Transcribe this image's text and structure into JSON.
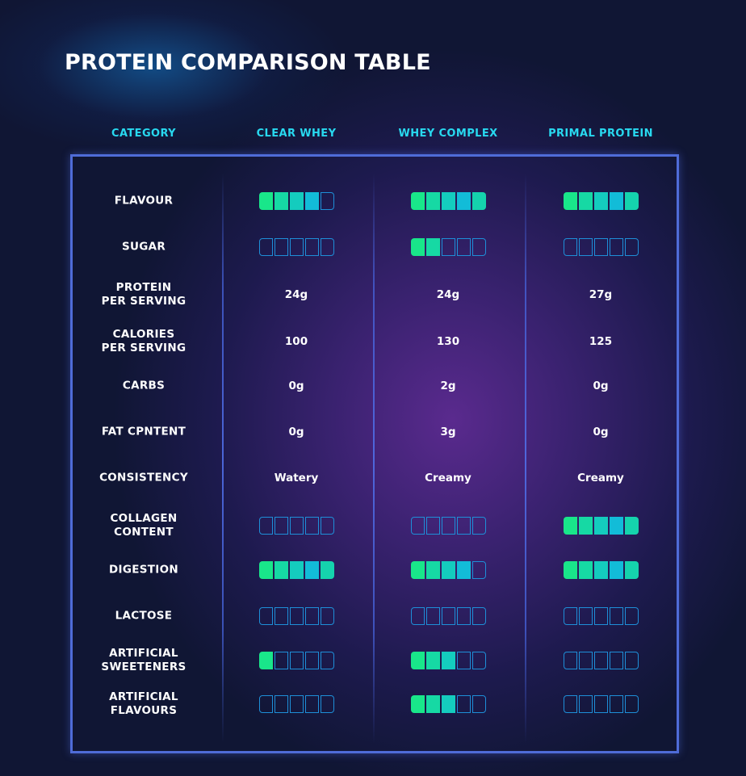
{
  "title": "PROTEIN COMPARISON TABLE",
  "headers": [
    "CATEGORY",
    "CLEAR WHEY",
    "WHEY COMPLEX",
    "PRIMAL PROTEIN"
  ],
  "colors": {
    "segment_fills": [
      "#19e68a",
      "#16d9a4",
      "#14ccbe",
      "#12bcd8",
      "#15d3ad"
    ],
    "segment_outline": "#1e8fd8"
  },
  "rows": [
    {
      "category": "FLAVOUR",
      "type": "meter",
      "values": [
        4,
        5,
        5
      ]
    },
    {
      "category": "SUGAR",
      "type": "meter",
      "values": [
        0,
        2,
        0
      ]
    },
    {
      "category": "PROTEIN\nPER SERVING",
      "type": "text",
      "values": [
        "24g",
        "24g",
        "27g"
      ]
    },
    {
      "category": "CALORIES\nPER SERVING",
      "type": "text",
      "values": [
        "100",
        "130",
        "125"
      ]
    },
    {
      "category": "CARBS",
      "type": "text",
      "values": [
        "0g",
        "2g",
        "0g"
      ]
    },
    {
      "category": "FAT CPNTENT",
      "type": "text",
      "values": [
        "0g",
        "3g",
        "0g"
      ]
    },
    {
      "category": "CONSISTENCY",
      "type": "text",
      "values": [
        "Watery",
        "Creamy",
        "Creamy"
      ]
    },
    {
      "category": "COLLAGEN\nCONTENT",
      "type": "meter",
      "values": [
        0,
        0,
        5
      ]
    },
    {
      "category": "DIGESTION",
      "type": "meter",
      "values": [
        5,
        4,
        5
      ]
    },
    {
      "category": "LACTOSE",
      "type": "meter",
      "values": [
        0,
        0,
        0
      ]
    },
    {
      "category": "ARTIFICIAL\nSWEETENERS",
      "type": "meter",
      "values": [
        1,
        3,
        0
      ]
    },
    {
      "category": "ARTIFICIAL\nFLAVOURS",
      "type": "meter",
      "values": [
        0,
        3,
        0
      ]
    }
  ],
  "meter_max": 5
}
